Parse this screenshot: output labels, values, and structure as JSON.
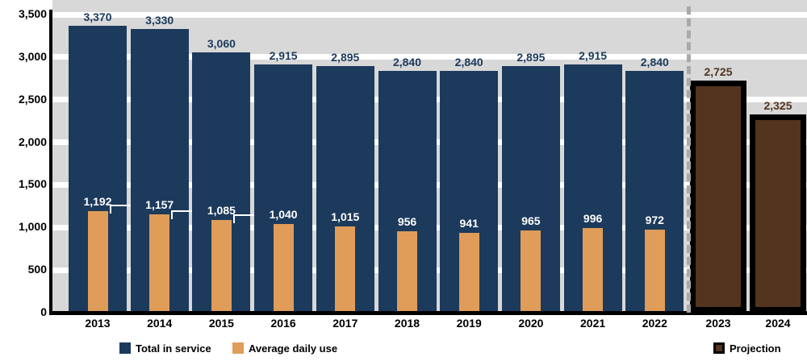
{
  "chart_data": {
    "type": "bar",
    "categories": [
      "2013",
      "2014",
      "2015",
      "2016",
      "2017",
      "2018",
      "2019",
      "2020",
      "2021",
      "2022",
      "2023",
      "2024"
    ],
    "series": [
      {
        "name": "Total in service",
        "role": "history-total",
        "color": "#1c3a5c",
        "values": [
          3370,
          3330,
          3060,
          2915,
          2895,
          2840,
          2840,
          2895,
          2915,
          2840,
          null,
          null
        ],
        "label_color": "#1c3a5c"
      },
      {
        "name": "Average daily use",
        "role": "history-average",
        "color": "#e09c59",
        "values": [
          1192,
          1157,
          1085,
          1040,
          1015,
          956,
          941,
          965,
          996,
          972,
          null,
          null
        ],
        "label_color": "#ffffff"
      },
      {
        "name": "Projection",
        "role": "projection",
        "color": "#53341e",
        "border_color": "#000000",
        "values": [
          null,
          null,
          null,
          null,
          null,
          null,
          null,
          null,
          null,
          null,
          2725,
          2325
        ],
        "label_color": "#53341e"
      }
    ],
    "ylim": [
      0,
      3500
    ],
    "ytick_step": 500,
    "yticks": [
      "0",
      "500",
      "1,000",
      "1,500",
      "2,000",
      "2,500",
      "3,000",
      "3,500"
    ],
    "grid": true,
    "legend_position": "bottom",
    "divider_after_index": 9,
    "plot_background": "#d8d8d8",
    "gridline_color": "#ffffff",
    "divider_color": "#a9a9a9"
  },
  "legend": {
    "items": [
      {
        "label": "Total in service",
        "color": "#1c3a5c"
      },
      {
        "label": "Average daily use",
        "color": "#e09c59"
      },
      {
        "label": "Projection",
        "color": "#53341e"
      }
    ]
  }
}
